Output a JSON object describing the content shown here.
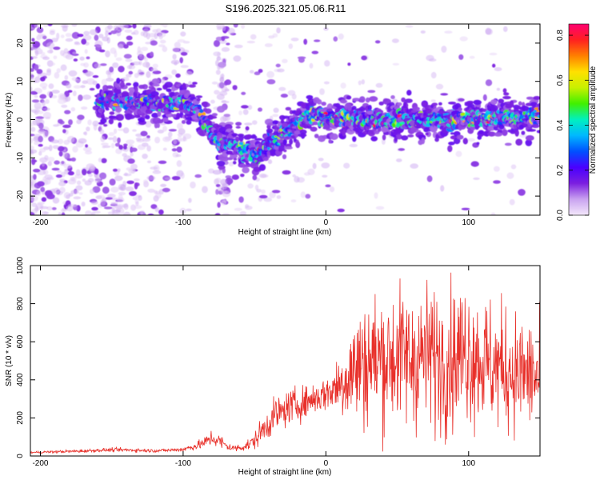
{
  "title": "S196.2025.321.05.06.R11",
  "chart_data": [
    {
      "type": "heatmap",
      "name": "spectrogram",
      "xlabel": "Height of straight line (km)",
      "ylabel": "Frequency (Hz)",
      "xlim": [
        -207,
        150
      ],
      "ylim": [
        -25,
        25
      ],
      "xticks": [
        -200,
        -100,
        0,
        100
      ],
      "xtick_labels": [
        "-200",
        "-100",
        "0",
        "100"
      ],
      "yticks": [
        -20,
        -10,
        0,
        10,
        20
      ],
      "ytick_labels": [
        "-20",
        "-10",
        "0",
        "10",
        "20"
      ],
      "colorbar": {
        "label": "Normalized spectral amplitude",
        "range": [
          0,
          0.85
        ],
        "ticks": [
          "0.0",
          "0.2",
          "0.4",
          "0.6",
          "0.8"
        ],
        "tick_values": [
          0.0,
          0.2,
          0.4,
          0.6,
          0.8
        ],
        "colors": [
          "#f4e8fb",
          "#c9a3f0",
          "#7b1fe0",
          "#4a00ff",
          "#0050ff",
          "#00b8ff",
          "#00f0c0",
          "#40f000",
          "#c8f000",
          "#ffe000",
          "#ff8000",
          "#ff2020",
          "#ff0070"
        ]
      },
      "ridge": {
        "x": [
          -150,
          -130,
          -110,
          -100,
          -90,
          -80,
          -75,
          -70,
          -60,
          -50,
          -45,
          -40,
          -30,
          -20,
          -10,
          -5,
          0,
          20,
          40,
          60,
          80,
          100,
          120,
          140,
          150
        ],
        "y": [
          5,
          4.5,
          4.5,
          4.5,
          2.5,
          -3,
          -6.5,
          -6,
          -7.5,
          -9.5,
          -8.5,
          -6.5,
          -3.5,
          -1,
          1.5,
          2,
          0,
          0.5,
          0,
          0,
          0,
          0,
          0.5,
          0.5,
          1.5
        ]
      }
    },
    {
      "type": "line",
      "name": "snr",
      "xlabel": "Height of straight line (km)",
      "ylabel": "SNR (10 * v/v)",
      "xlim": [
        -207,
        150
      ],
      "ylim": [
        0,
        1000
      ],
      "xticks": [
        -200,
        -100,
        0,
        100
      ],
      "xtick_labels": [
        "-200",
        "-100",
        "0",
        "100"
      ],
      "yticks": [
        0,
        200,
        400,
        600,
        800,
        1000
      ],
      "ytick_labels": [
        "0",
        "200",
        "400",
        "600",
        "800",
        "1000"
      ],
      "series": [
        {
          "name": "SNR",
          "color": "#e8302a",
          "x": [
            -207,
            -200,
            -190,
            -180,
            -170,
            -160,
            -150,
            -140,
            -130,
            -120,
            -110,
            -100,
            -95,
            -90,
            -85,
            -80,
            -75,
            -70,
            -65,
            -60,
            -55,
            -50,
            -45,
            -40,
            -35,
            -30,
            -25,
            -20,
            -15,
            -10,
            -5,
            0,
            5,
            10,
            15,
            20,
            25,
            30,
            35,
            40,
            45,
            50,
            55,
            60,
            65,
            70,
            75,
            80,
            85,
            90,
            95,
            100,
            105,
            110,
            115,
            120,
            125,
            130,
            135,
            140,
            145,
            150
          ],
          "y": [
            18,
            20,
            22,
            24,
            26,
            30,
            32,
            32,
            30,
            28,
            30,
            35,
            45,
            55,
            70,
            95,
            80,
            55,
            40,
            45,
            55,
            80,
            130,
            175,
            220,
            230,
            260,
            270,
            280,
            300,
            310,
            330,
            350,
            380,
            420,
            460,
            480,
            500,
            510,
            520,
            510,
            530,
            520,
            510,
            520,
            530,
            520,
            510,
            500,
            520,
            540,
            560,
            520,
            500,
            480,
            470,
            460,
            450,
            440,
            430,
            420,
            400
          ],
          "noise": [
            4,
            4,
            5,
            5,
            6,
            6,
            7,
            7,
            7,
            6,
            6,
            8,
            12,
            15,
            20,
            30,
            28,
            18,
            12,
            14,
            20,
            30,
            45,
            55,
            60,
            60,
            60,
            60,
            55,
            55,
            60,
            60,
            80,
            120,
            160,
            200,
            220,
            230,
            240,
            240,
            240,
            240,
            240,
            240,
            250,
            250,
            250,
            250,
            250,
            250,
            250,
            250,
            240,
            230,
            230,
            220,
            220,
            210,
            200,
            200,
            200,
            200
          ]
        }
      ]
    }
  ]
}
